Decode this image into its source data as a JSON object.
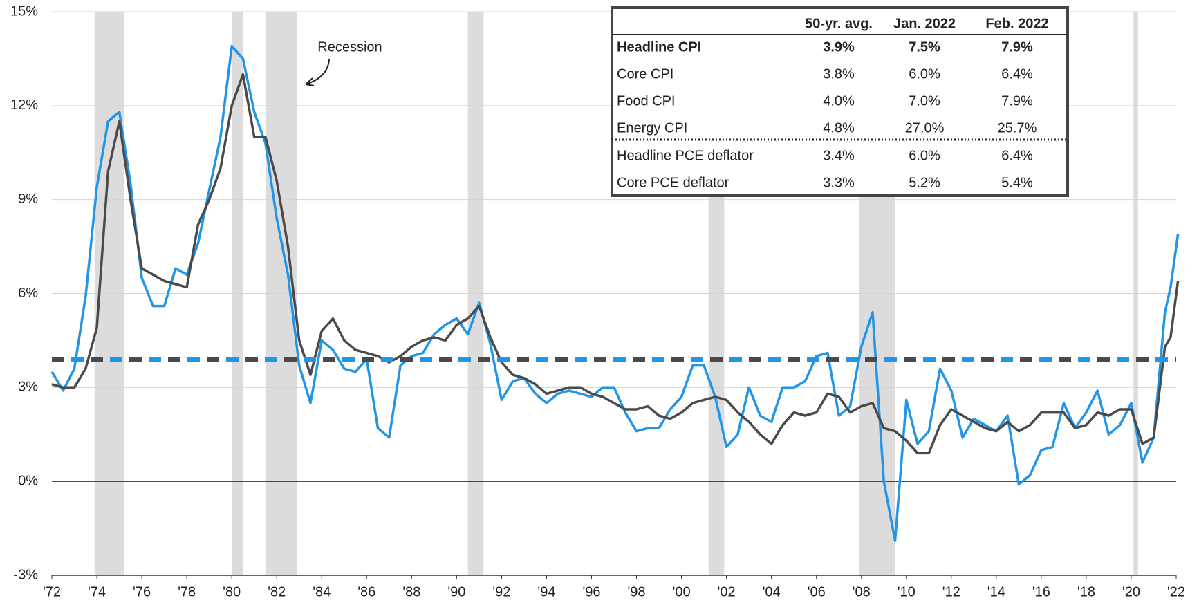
{
  "chart_data": {
    "type": "line",
    "annotation": "Recession",
    "xlim": [
      1972,
      2022
    ],
    "ylim": [
      -3,
      15
    ],
    "yticks": [
      {
        "value": -3,
        "label": "-3%"
      },
      {
        "value": 0,
        "label": "0%"
      },
      {
        "value": 3,
        "label": "3%"
      },
      {
        "value": 6,
        "label": "6%"
      },
      {
        "value": 9,
        "label": "9%"
      },
      {
        "value": 12,
        "label": "12%"
      },
      {
        "value": 15,
        "label": "15%"
      }
    ],
    "xticks": [
      {
        "value": 1972,
        "label": "'72"
      },
      {
        "value": 1974,
        "label": "'74"
      },
      {
        "value": 1976,
        "label": "'76"
      },
      {
        "value": 1978,
        "label": "'78"
      },
      {
        "value": 1980,
        "label": "'80"
      },
      {
        "value": 1982,
        "label": "'82"
      },
      {
        "value": 1984,
        "label": "'84"
      },
      {
        "value": 1986,
        "label": "'86"
      },
      {
        "value": 1988,
        "label": "'88"
      },
      {
        "value": 1990,
        "label": "'90"
      },
      {
        "value": 1992,
        "label": "'92"
      },
      {
        "value": 1994,
        "label": "'94"
      },
      {
        "value": 1996,
        "label": "'96"
      },
      {
        "value": 1998,
        "label": "'98"
      },
      {
        "value": 2000,
        "label": "'00"
      },
      {
        "value": 2002,
        "label": "'02"
      },
      {
        "value": 2004,
        "label": "'04"
      },
      {
        "value": 2006,
        "label": "'06"
      },
      {
        "value": 2008,
        "label": "'08"
      },
      {
        "value": 2010,
        "label": "'10"
      },
      {
        "value": 2012,
        "label": "'12"
      },
      {
        "value": 2014,
        "label": "'14"
      },
      {
        "value": 2016,
        "label": "'16"
      },
      {
        "value": 2018,
        "label": "'18"
      },
      {
        "value": 2020,
        "label": "'20"
      },
      {
        "value": 2022,
        "label": "'22"
      }
    ],
    "grid": true,
    "recessions": [
      [
        1973.9,
        1975.2
      ],
      [
        1980.0,
        1980.5
      ],
      [
        1981.5,
        1982.9
      ],
      [
        1990.5,
        1991.2
      ],
      [
        2001.2,
        2001.9
      ],
      [
        2007.9,
        2009.5
      ],
      [
        2020.1,
        2020.3
      ]
    ],
    "average_line": 3.9,
    "x": [
      1972,
      1972.5,
      1973,
      1973.5,
      1974,
      1974.5,
      1975,
      1975.5,
      1976,
      1976.5,
      1977,
      1977.5,
      1978,
      1978.5,
      1979,
      1979.5,
      1980,
      1980.5,
      1981,
      1981.5,
      1982,
      1982.5,
      1983,
      1983.5,
      1984,
      1984.5,
      1985,
      1985.5,
      1986,
      1986.5,
      1987,
      1987.5,
      1988,
      1988.5,
      1989,
      1989.5,
      1990,
      1990.5,
      1991,
      1991.5,
      1992,
      1992.5,
      1993,
      1993.5,
      1994,
      1994.5,
      1995,
      1995.5,
      1996,
      1996.5,
      1997,
      1997.5,
      1998,
      1998.5,
      1999,
      1999.5,
      2000,
      2000.5,
      2001,
      2001.5,
      2002,
      2002.5,
      2003,
      2003.5,
      2004,
      2004.5,
      2005,
      2005.5,
      2006,
      2006.5,
      2007,
      2007.5,
      2008,
      2008.5,
      2009,
      2009.5,
      2010,
      2010.5,
      2011,
      2011.5,
      2012,
      2012.5,
      2013,
      2013.5,
      2014,
      2014.5,
      2015,
      2015.5,
      2016,
      2016.5,
      2017,
      2017.5,
      2018,
      2018.5,
      2019,
      2019.5,
      2020,
      2020.5,
      2021,
      2021.5,
      2021.75,
      2022.08
    ],
    "series": [
      {
        "name": "Headline CPI",
        "color": "#2196e8",
        "values": [
          3.5,
          2.9,
          3.6,
          5.9,
          9.4,
          11.5,
          11.8,
          9.5,
          6.5,
          5.6,
          5.6,
          6.8,
          6.6,
          7.6,
          9.3,
          11.0,
          13.9,
          13.5,
          11.8,
          10.8,
          8.4,
          6.6,
          3.7,
          2.5,
          4.5,
          4.2,
          3.6,
          3.5,
          3.9,
          1.7,
          1.4,
          3.7,
          4.0,
          4.1,
          4.7,
          5.0,
          5.2,
          4.7,
          5.7,
          4.4,
          2.6,
          3.2,
          3.3,
          2.8,
          2.5,
          2.8,
          2.9,
          2.8,
          2.7,
          3.0,
          3.0,
          2.2,
          1.6,
          1.7,
          1.7,
          2.3,
          2.7,
          3.7,
          3.7,
          2.7,
          1.1,
          1.5,
          3.0,
          2.1,
          1.9,
          3.0,
          3.0,
          3.2,
          4.0,
          4.1,
          2.1,
          2.4,
          4.3,
          5.4,
          0.0,
          -1.9,
          2.6,
          1.2,
          1.6,
          3.6,
          2.9,
          1.4,
          2.0,
          1.8,
          1.6,
          2.1,
          -0.1,
          0.2,
          1.0,
          1.1,
          2.5,
          1.7,
          2.2,
          2.9,
          1.5,
          1.8,
          2.5,
          0.6,
          1.4,
          5.4,
          6.2,
          7.9
        ]
      },
      {
        "name": "Core CPI",
        "color": "#4a4a4a",
        "values": [
          3.1,
          3.0,
          3.0,
          3.6,
          4.9,
          9.9,
          11.5,
          9.0,
          6.8,
          6.6,
          6.4,
          6.3,
          6.2,
          8.2,
          9.0,
          10.0,
          12.0,
          13.0,
          11.0,
          11.0,
          9.6,
          7.5,
          4.5,
          3.4,
          4.8,
          5.2,
          4.5,
          4.2,
          4.1,
          4.0,
          3.8,
          4.0,
          4.3,
          4.5,
          4.6,
          4.5,
          5.0,
          5.2,
          5.6,
          4.6,
          3.8,
          3.4,
          3.3,
          3.1,
          2.8,
          2.9,
          3.0,
          3.0,
          2.8,
          2.7,
          2.5,
          2.3,
          2.3,
          2.4,
          2.1,
          2.0,
          2.2,
          2.5,
          2.6,
          2.7,
          2.6,
          2.2,
          1.9,
          1.5,
          1.2,
          1.8,
          2.2,
          2.1,
          2.2,
          2.8,
          2.7,
          2.2,
          2.4,
          2.5,
          1.7,
          1.6,
          1.3,
          0.9,
          0.9,
          1.8,
          2.3,
          2.1,
          1.9,
          1.7,
          1.6,
          1.9,
          1.6,
          1.8,
          2.2,
          2.2,
          2.2,
          1.7,
          1.8,
          2.2,
          2.1,
          2.3,
          2.3,
          1.2,
          1.4,
          4.3,
          4.6,
          6.4
        ]
      }
    ],
    "table": {
      "columns": [
        "50-yr. avg.",
        "Jan. 2022",
        "Feb. 2022"
      ],
      "rows": [
        {
          "label": "Headline CPI",
          "values": [
            "3.9%",
            "7.5%",
            "7.9%"
          ]
        },
        {
          "label": "Core CPI",
          "values": [
            "3.8%",
            "6.0%",
            "6.4%"
          ]
        },
        {
          "label": "Food CPI",
          "values": [
            "4.0%",
            "7.0%",
            "7.9%"
          ]
        },
        {
          "label": "Energy CPI",
          "values": [
            "4.8%",
            "27.0%",
            "25.7%"
          ]
        },
        {
          "label": "Headline PCE deflator",
          "values": [
            "3.4%",
            "6.0%",
            "6.4%"
          ]
        },
        {
          "label": "Core PCE deflator",
          "values": [
            "3.3%",
            "5.2%",
            "5.4%"
          ]
        }
      ]
    }
  }
}
